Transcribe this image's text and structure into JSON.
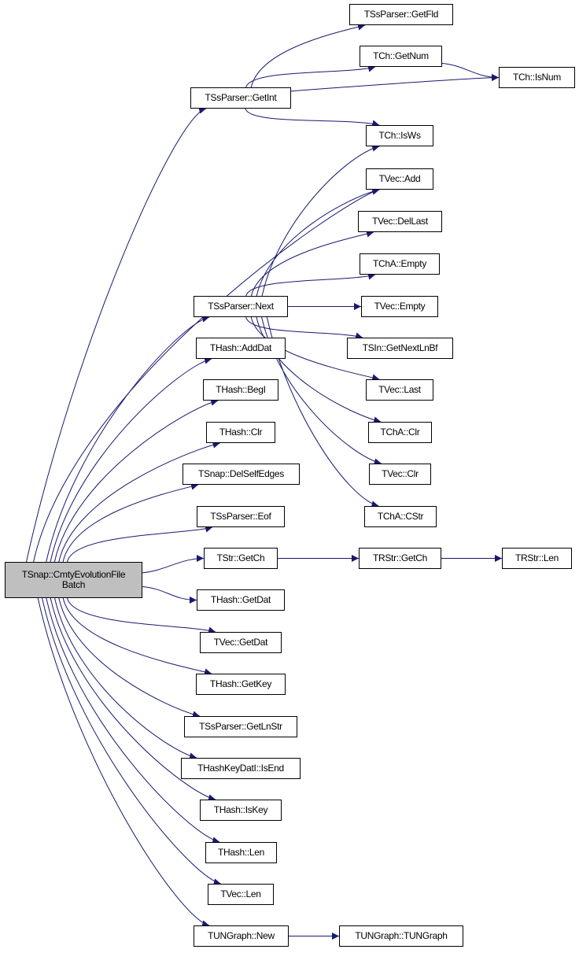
{
  "colors": {
    "edge": "#191970",
    "root_fill": "#bfbfbf",
    "node_fill": "#ffffff",
    "border": "#000000"
  },
  "nodes": {
    "root": "TSnap::CmtyEvolutionFile\nBatch",
    "getint": "TSsParser::GetInt",
    "next": "TSsParser::Next",
    "adddat": "THash::AddDat",
    "begi": "THash::BegI",
    "hclr": "THash::Clr",
    "delself": "TSnap::DelSelfEdges",
    "eof": "TSsParser::Eof",
    "strgetch": "TStr::GetCh",
    "hgetdat": "THash::GetDat",
    "vgetdat": "TVec::GetDat",
    "getkey": "THash::GetKey",
    "getlnstr": "TSsParser::GetLnStr",
    "isend": "THashKeyDatI::IsEnd",
    "iskey": "THash::IsKey",
    "hlen": "THash::Len",
    "vlen": "TVec::Len",
    "new": "TUNGraph::New",
    "getfld": "TSsParser::GetFld",
    "getnum": "TCh::GetNum",
    "isws": "TCh::IsWs",
    "add": "TVec::Add",
    "dellast": "TVec::DelLast",
    "chaempty": "TChA::Empty",
    "vempty": "TVec::Empty",
    "getnextlnbf": "TSIn::GetNextLnBf",
    "last": "TVec::Last",
    "chaclr": "TChA::Clr",
    "vclr": "TVec::Clr",
    "cstr": "TChA::CStr",
    "rstrgetch": "TRStr::GetCh",
    "tungraph": "TUNGraph::TUNGraph",
    "isnum": "TCh::IsNum",
    "rstrlen": "TRStr::Len"
  },
  "edges": [
    [
      "root",
      "getint"
    ],
    [
      "root",
      "add"
    ],
    [
      "root",
      "next"
    ],
    [
      "root",
      "adddat"
    ],
    [
      "root",
      "begi"
    ],
    [
      "root",
      "hclr"
    ],
    [
      "root",
      "delself"
    ],
    [
      "root",
      "eof"
    ],
    [
      "root",
      "strgetch"
    ],
    [
      "root",
      "hgetdat"
    ],
    [
      "root",
      "vgetdat"
    ],
    [
      "root",
      "getkey"
    ],
    [
      "root",
      "getlnstr"
    ],
    [
      "root",
      "isend"
    ],
    [
      "root",
      "iskey"
    ],
    [
      "root",
      "hlen"
    ],
    [
      "root",
      "vlen"
    ],
    [
      "root",
      "new"
    ],
    [
      "getint",
      "getfld"
    ],
    [
      "getint",
      "getnum"
    ],
    [
      "getint",
      "isnum"
    ],
    [
      "getint",
      "isws"
    ],
    [
      "getnum",
      "isnum"
    ],
    [
      "next",
      "isws"
    ],
    [
      "next",
      "add"
    ],
    [
      "next",
      "dellast"
    ],
    [
      "next",
      "chaempty"
    ],
    [
      "next",
      "vempty"
    ],
    [
      "next",
      "getnextlnbf"
    ],
    [
      "next",
      "last"
    ],
    [
      "next",
      "chaclr"
    ],
    [
      "next",
      "vclr"
    ],
    [
      "next",
      "cstr"
    ],
    [
      "strgetch",
      "rstrgetch"
    ],
    [
      "rstrgetch",
      "rstrlen"
    ],
    [
      "new",
      "tungraph"
    ]
  ]
}
